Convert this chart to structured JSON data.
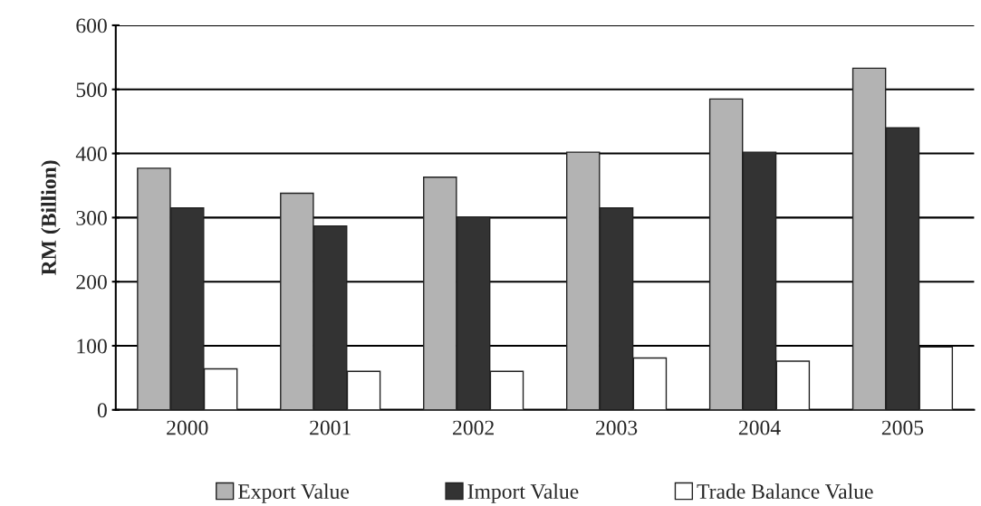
{
  "chart_data": {
    "type": "bar",
    "ylabel": "RM (Billion)",
    "categories": [
      "2000",
      "2001",
      "2002",
      "2003",
      "2004",
      "2005"
    ],
    "series": [
      {
        "name": "Export Value",
        "color": "#b3b3b3",
        "values": [
          377,
          338,
          363,
          402,
          485,
          533
        ]
      },
      {
        "name": "Import Value",
        "color": "#333333",
        "values": [
          315,
          287,
          301,
          315,
          402,
          440
        ]
      },
      {
        "name": "Trade Balance Value",
        "color": "#ffffff",
        "values": [
          64,
          60,
          60,
          81,
          76,
          98
        ]
      }
    ],
    "ylim": [
      0,
      600
    ],
    "yticks": [
      0,
      100,
      200,
      300,
      400,
      500,
      600
    ],
    "grid": "y",
    "legend": "bottom"
  }
}
